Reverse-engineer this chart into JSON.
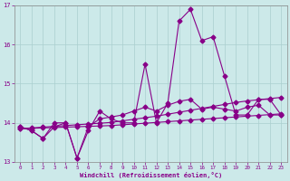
{
  "xlabel": "Windchill (Refroidissement éolien,°C)",
  "xlim": [
    -0.5,
    23.5
  ],
  "ylim": [
    13,
    17
  ],
  "yticks": [
    13,
    14,
    15,
    16,
    17
  ],
  "xticks": [
    0,
    1,
    2,
    3,
    4,
    5,
    6,
    7,
    8,
    9,
    10,
    11,
    12,
    13,
    14,
    15,
    16,
    17,
    18,
    19,
    20,
    21,
    22,
    23
  ],
  "background_color": "#cce9e9",
  "grid_color": "#aacfcf",
  "line_color": "#880088",
  "line1_x": [
    0,
    1,
    2,
    3,
    4,
    5,
    6,
    7,
    8,
    9,
    10,
    11,
    12,
    13,
    14,
    15,
    16,
    17,
    18,
    19,
    20,
    21,
    22,
    23
  ],
  "line1_y": [
    13.9,
    13.8,
    13.6,
    13.9,
    14.0,
    13.1,
    13.8,
    14.3,
    14.1,
    14.0,
    14.0,
    15.5,
    14.0,
    14.5,
    16.6,
    16.9,
    16.1,
    16.2,
    15.2,
    14.2,
    14.2,
    14.6,
    14.6,
    14.2
  ],
  "line2_x": [
    0,
    1,
    2,
    3,
    4,
    5,
    6,
    7,
    8,
    9,
    10,
    11,
    12,
    13,
    14,
    15,
    16,
    17,
    18,
    19,
    20,
    21,
    22,
    23
  ],
  "line2_y": [
    13.9,
    13.8,
    13.6,
    14.0,
    14.0,
    13.1,
    13.9,
    14.1,
    14.15,
    14.2,
    14.3,
    14.4,
    14.3,
    14.45,
    14.55,
    14.6,
    14.35,
    14.4,
    14.35,
    14.3,
    14.4,
    14.45,
    14.2,
    14.2
  ],
  "line3_x": [
    0,
    1,
    2,
    3,
    4,
    5,
    6,
    7,
    8,
    9,
    10,
    11,
    12,
    13,
    14,
    15,
    16,
    17,
    18,
    19,
    20,
    21,
    22,
    23
  ],
  "line3_y": [
    13.85,
    13.87,
    13.89,
    13.91,
    13.93,
    13.95,
    13.97,
    13.99,
    14.01,
    14.05,
    14.09,
    14.13,
    14.17,
    14.22,
    14.27,
    14.32,
    14.37,
    14.42,
    14.47,
    14.52,
    14.56,
    14.59,
    14.62,
    14.65
  ],
  "line4_x": [
    0,
    1,
    2,
    3,
    4,
    5,
    6,
    7,
    8,
    9,
    10,
    11,
    12,
    13,
    14,
    15,
    16,
    17,
    18,
    19,
    20,
    21,
    22,
    23
  ],
  "line4_y": [
    13.85,
    13.86,
    13.87,
    13.88,
    13.89,
    13.9,
    13.91,
    13.92,
    13.93,
    13.95,
    13.97,
    13.99,
    14.01,
    14.03,
    14.05,
    14.07,
    14.09,
    14.11,
    14.13,
    14.15,
    14.17,
    14.19,
    14.21,
    14.23
  ],
  "markersize": 2.5,
  "linewidth": 0.8
}
